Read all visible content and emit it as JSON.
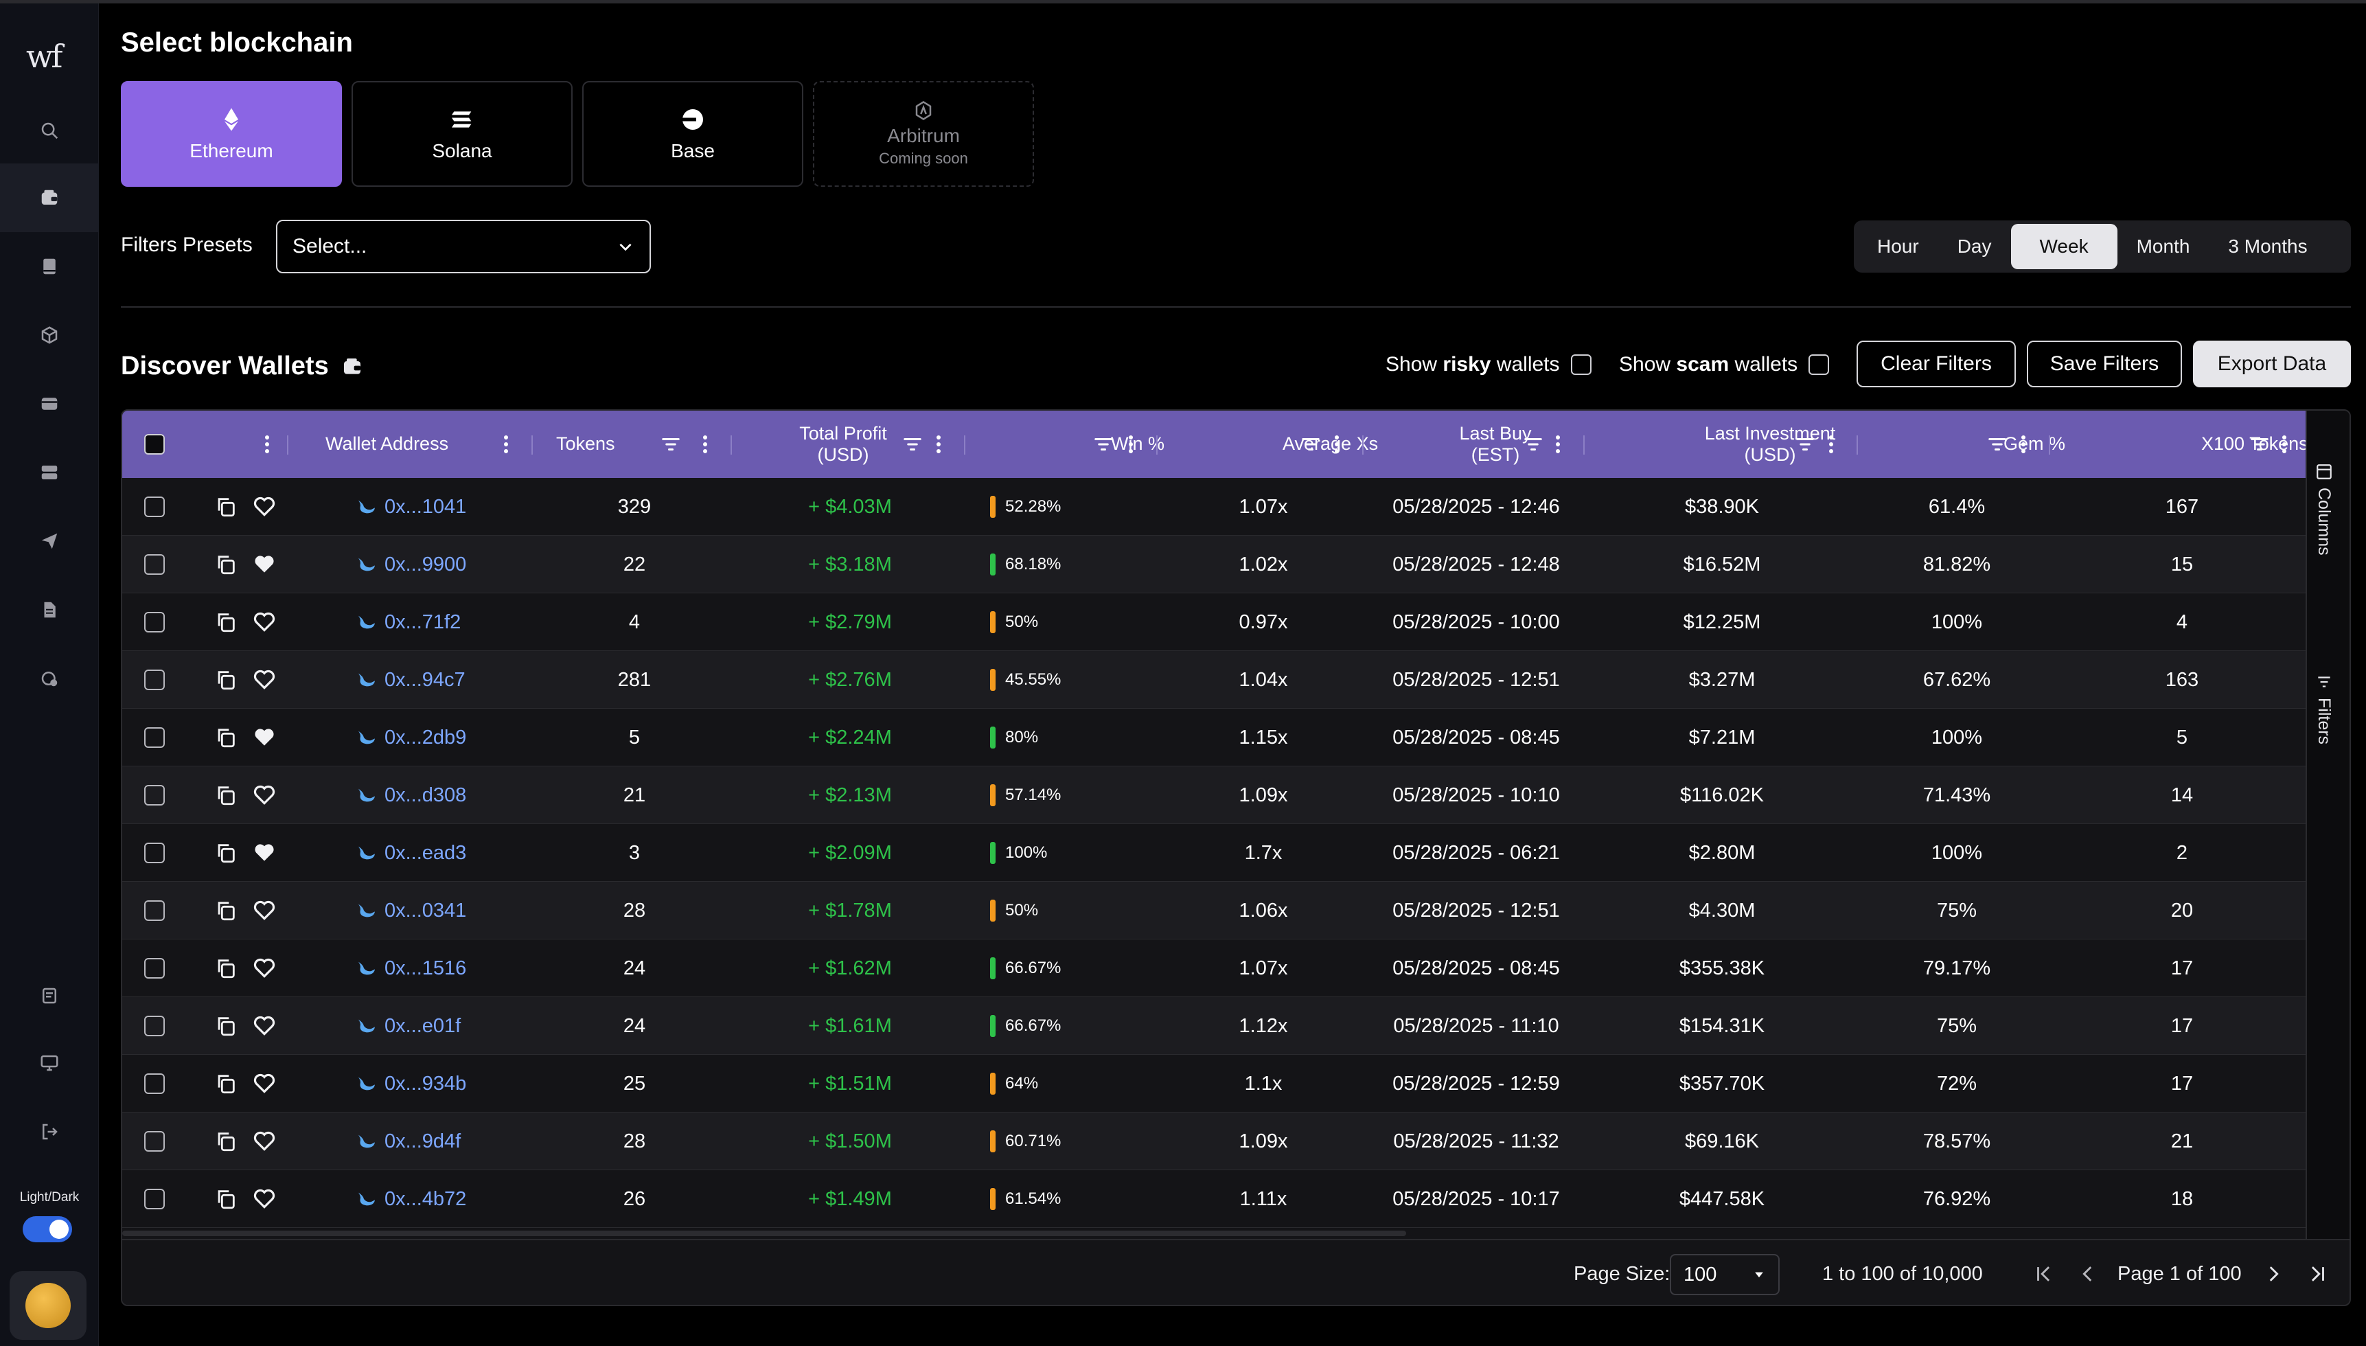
{
  "sidebar": {
    "logo": "wf",
    "theme_label": "Light/Dark",
    "icons": [
      "search-icon",
      "wallet-icon",
      "book-icon",
      "cube-icon",
      "card-icon",
      "server-icon",
      "send-icon",
      "document-icon",
      "settings-shield-icon",
      "report-icon",
      "monitor-icon",
      "logout-icon"
    ]
  },
  "header": {
    "title": "Select blockchain"
  },
  "chains": [
    {
      "name": "Ethereum",
      "sub": "",
      "icon": "ethereum-icon"
    },
    {
      "name": "Solana",
      "sub": "",
      "icon": "solana-icon"
    },
    {
      "name": "Base",
      "sub": "",
      "icon": "base-icon"
    },
    {
      "name": "Arbitrum",
      "sub": "Coming soon",
      "icon": "arbitrum-icon"
    }
  ],
  "filters": {
    "presets_label": "Filters Presets",
    "presets_value": "Select...",
    "periods": [
      "Hour",
      "Day",
      "Week",
      "Month",
      "3 Months"
    ],
    "active_period": "Week"
  },
  "discover": {
    "title": "Discover Wallets",
    "show_risky_prefix": "Show ",
    "show_risky_bold": "risky",
    "show_risky_suffix": " wallets",
    "show_scam_prefix": "Show ",
    "show_scam_bold": "scam",
    "show_scam_suffix": " wallets",
    "clear": "Clear Filters",
    "save": "Save Filters",
    "export": "Export Data"
  },
  "table": {
    "columns": [
      "Wallet Address",
      "Tokens",
      "Total Profit\n(USD)",
      "Win %",
      "Average Xs",
      "Last Buy\n(EST)",
      "Last Investment\n(USD)",
      "Gem %",
      "X100 Tokens"
    ],
    "rows": [
      {
        "fav": false,
        "address": "0x...1041",
        "tokens": "329",
        "profit": "+ $4.03M",
        "win": "52.28%",
        "win_color": "#f39a1e",
        "avgx": "1.07x",
        "last_buy": "05/28/2025 - 12:46",
        "last_inv": "$38.90K",
        "gem": "61.4%",
        "x100": "167"
      },
      {
        "fav": true,
        "address": "0x...9900",
        "tokens": "22",
        "profit": "+ $3.18M",
        "win": "68.18%",
        "win_color": "#2ec24a",
        "avgx": "1.02x",
        "last_buy": "05/28/2025 - 12:48",
        "last_inv": "$16.52M",
        "gem": "81.82%",
        "x100": "15"
      },
      {
        "fav": false,
        "address": "0x...71f2",
        "tokens": "4",
        "profit": "+ $2.79M",
        "win": "50%",
        "win_color": "#f39a1e",
        "avgx": "0.97x",
        "last_buy": "05/28/2025 - 10:00",
        "last_inv": "$12.25M",
        "gem": "100%",
        "x100": "4"
      },
      {
        "fav": false,
        "address": "0x...94c7",
        "tokens": "281",
        "profit": "+ $2.76M",
        "win": "45.55%",
        "win_color": "#f39a1e",
        "avgx": "1.04x",
        "last_buy": "05/28/2025 - 12:51",
        "last_inv": "$3.27M",
        "gem": "67.62%",
        "x100": "163"
      },
      {
        "fav": true,
        "address": "0x...2db9",
        "tokens": "5",
        "profit": "+ $2.24M",
        "win": "80%",
        "win_color": "#2ec24a",
        "avgx": "1.15x",
        "last_buy": "05/28/2025 - 08:45",
        "last_inv": "$7.21M",
        "gem": "100%",
        "x100": "5"
      },
      {
        "fav": false,
        "address": "0x...d308",
        "tokens": "21",
        "profit": "+ $2.13M",
        "win": "57.14%",
        "win_color": "#f39a1e",
        "avgx": "1.09x",
        "last_buy": "05/28/2025 - 10:10",
        "last_inv": "$116.02K",
        "gem": "71.43%",
        "x100": "14"
      },
      {
        "fav": true,
        "address": "0x...ead3",
        "tokens": "3",
        "profit": "+ $2.09M",
        "win": "100%",
        "win_color": "#2ec24a",
        "avgx": "1.7x",
        "last_buy": "05/28/2025 - 06:21",
        "last_inv": "$2.80M",
        "gem": "100%",
        "x100": "2"
      },
      {
        "fav": false,
        "address": "0x...0341",
        "tokens": "28",
        "profit": "+ $1.78M",
        "win": "50%",
        "win_color": "#f39a1e",
        "avgx": "1.06x",
        "last_buy": "05/28/2025 - 12:51",
        "last_inv": "$4.30M",
        "gem": "75%",
        "x100": "20"
      },
      {
        "fav": false,
        "address": "0x...1516",
        "tokens": "24",
        "profit": "+ $1.62M",
        "win": "66.67%",
        "win_color": "#2ec24a",
        "avgx": "1.07x",
        "last_buy": "05/28/2025 - 08:45",
        "last_inv": "$355.38K",
        "gem": "79.17%",
        "x100": "17"
      },
      {
        "fav": false,
        "address": "0x...e01f",
        "tokens": "24",
        "profit": "+ $1.61M",
        "win": "66.67%",
        "win_color": "#2ec24a",
        "avgx": "1.12x",
        "last_buy": "05/28/2025 - 11:10",
        "last_inv": "$154.31K",
        "gem": "75%",
        "x100": "17"
      },
      {
        "fav": false,
        "address": "0x...934b",
        "tokens": "25",
        "profit": "+ $1.51M",
        "win": "64%",
        "win_color": "#f39a1e",
        "avgx": "1.1x",
        "last_buy": "05/28/2025 - 12:59",
        "last_inv": "$357.70K",
        "gem": "72%",
        "x100": "17"
      },
      {
        "fav": false,
        "address": "0x...9d4f",
        "tokens": "28",
        "profit": "+ $1.50M",
        "win": "60.71%",
        "win_color": "#f39a1e",
        "avgx": "1.09x",
        "last_buy": "05/28/2025 - 11:32",
        "last_inv": "$69.16K",
        "gem": "78.57%",
        "x100": "21"
      },
      {
        "fav": false,
        "address": "0x...4b72",
        "tokens": "26",
        "profit": "+ $1.49M",
        "win": "61.54%",
        "win_color": "#f39a1e",
        "avgx": "1.11x",
        "last_buy": "05/28/2025 - 10:17",
        "last_inv": "$447.58K",
        "gem": "76.92%",
        "x100": "18"
      }
    ],
    "side_panel": [
      "Columns",
      "Filters"
    ]
  },
  "pagination": {
    "page_size_label": "Page Size:",
    "page_size": "100",
    "range": "1 to 100 of 10,000",
    "page": "Page 1 of 100"
  }
}
